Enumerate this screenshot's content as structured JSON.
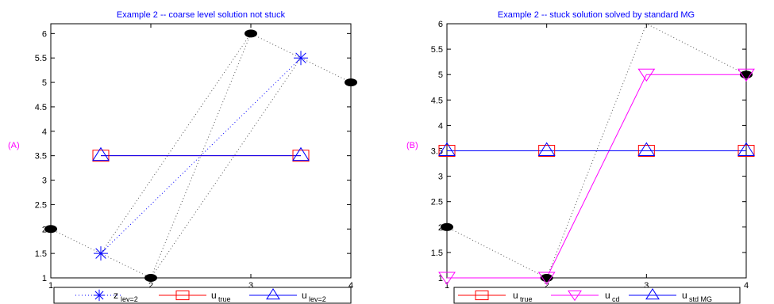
{
  "chart_data": [
    {
      "type": "line",
      "title": "Example 2 -- coarse level solution not stuck",
      "panel_label": "(A)",
      "xlim": [
        1,
        4
      ],
      "ylim": [
        1,
        6.2
      ],
      "xticks": [
        1,
        2,
        3,
        4
      ],
      "yticks": [
        1,
        1.5,
        2,
        2.5,
        3,
        3.5,
        4,
        4.5,
        5,
        5.5,
        6
      ],
      "series": [
        {
          "name": "z",
          "sub": "lev=2",
          "color": "#0000ff",
          "dash": "1,3",
          "marker": "star",
          "x": [
            1.5,
            3.5
          ],
          "y": [
            1.5,
            5.5
          ]
        },
        {
          "name": "u",
          "sub": "true",
          "color": "#ff0000",
          "dash": "",
          "marker": "square",
          "x": [
            1.5,
            3.5
          ],
          "y": [
            3.5,
            3.5
          ]
        },
        {
          "name": "u",
          "sub": "lev=2",
          "color": "#0000ff",
          "dash": "",
          "marker": "triangle-up",
          "x": [
            1.5,
            3.5
          ],
          "y": [
            3.5,
            3.5
          ]
        }
      ],
      "extra_lines": [
        {
          "color": "#555555",
          "dash": "1,3",
          "x": [
            1,
            1.5,
            2,
            3,
            3.5,
            4
          ],
          "y": [
            2,
            1.5,
            1,
            6,
            5.5,
            5
          ]
        },
        {
          "color": "#555555",
          "dash": "1,3",
          "x": [
            2,
            3.5
          ],
          "y": [
            1,
            5.5
          ]
        },
        {
          "color": "#555555",
          "dash": "1,3",
          "x": [
            1.5,
            3
          ],
          "y": [
            1.5,
            6
          ]
        }
      ],
      "black_dots": {
        "x": [
          1,
          2,
          3,
          4
        ],
        "y": [
          2,
          1,
          6,
          5
        ]
      }
    },
    {
      "type": "line",
      "title": "Example 2 -- stuck solution solved by standard MG",
      "panel_label": "(B)",
      "xlim": [
        1,
        4
      ],
      "ylim": [
        1,
        6
      ],
      "xticks": [
        1,
        2,
        3,
        4
      ],
      "yticks": [
        1,
        1.5,
        2,
        2.5,
        3,
        3.5,
        4,
        4.5,
        5,
        5.5,
        6
      ],
      "series": [
        {
          "name": "u",
          "sub": "true",
          "color": "#ff0000",
          "dash": "",
          "marker": "square",
          "x": [
            1,
            2,
            3,
            4
          ],
          "y": [
            3.5,
            3.5,
            3.5,
            3.5
          ]
        },
        {
          "name": "u",
          "sub": "cd",
          "color": "#ff00ff",
          "dash": "",
          "marker": "triangle-down",
          "x": [
            1,
            2,
            3,
            4
          ],
          "y": [
            1,
            1,
            5,
            5
          ]
        },
        {
          "name": "u",
          "sub": "std MG",
          "color": "#0000ff",
          "dash": "",
          "marker": "triangle-up",
          "x": [
            1,
            2,
            3,
            4
          ],
          "y": [
            3.5,
            3.5,
            3.5,
            3.5
          ]
        }
      ],
      "extra_lines": [
        {
          "color": "#555555",
          "dash": "1,3",
          "x": [
            1,
            2,
            3,
            4
          ],
          "y": [
            2,
            1,
            6,
            5
          ]
        }
      ],
      "black_dots": {
        "x": [
          1,
          2,
          4
        ],
        "y": [
          2,
          1,
          5
        ]
      }
    }
  ]
}
